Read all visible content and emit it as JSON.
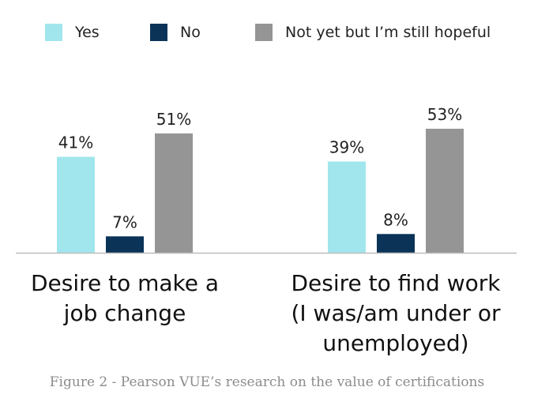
{
  "chart_data": {
    "type": "bar",
    "categories": [
      [
        "Desire to make a",
        "job change"
      ],
      [
        "Desire to find work",
        "(I was/am under or",
        "unemployed)"
      ]
    ],
    "series": [
      {
        "name": "Yes",
        "color": "#a0e6ec",
        "values": [
          41,
          39
        ],
        "labels": [
          "41%",
          "39%"
        ]
      },
      {
        "name": "No",
        "color": "#0b3358",
        "values": [
          7,
          8
        ],
        "labels": [
          "7%",
          "8%"
        ]
      },
      {
        "name": "Not yet but I’m still hopeful",
        "color": "#959595",
        "values": [
          51,
          53
        ],
        "labels": [
          "51%",
          "53%"
        ]
      }
    ],
    "ylim": [
      0,
      53
    ],
    "legend": "top",
    "grid": false
  },
  "caption": "Figure 2 - Pearson VUE’s research on the value of certifications"
}
